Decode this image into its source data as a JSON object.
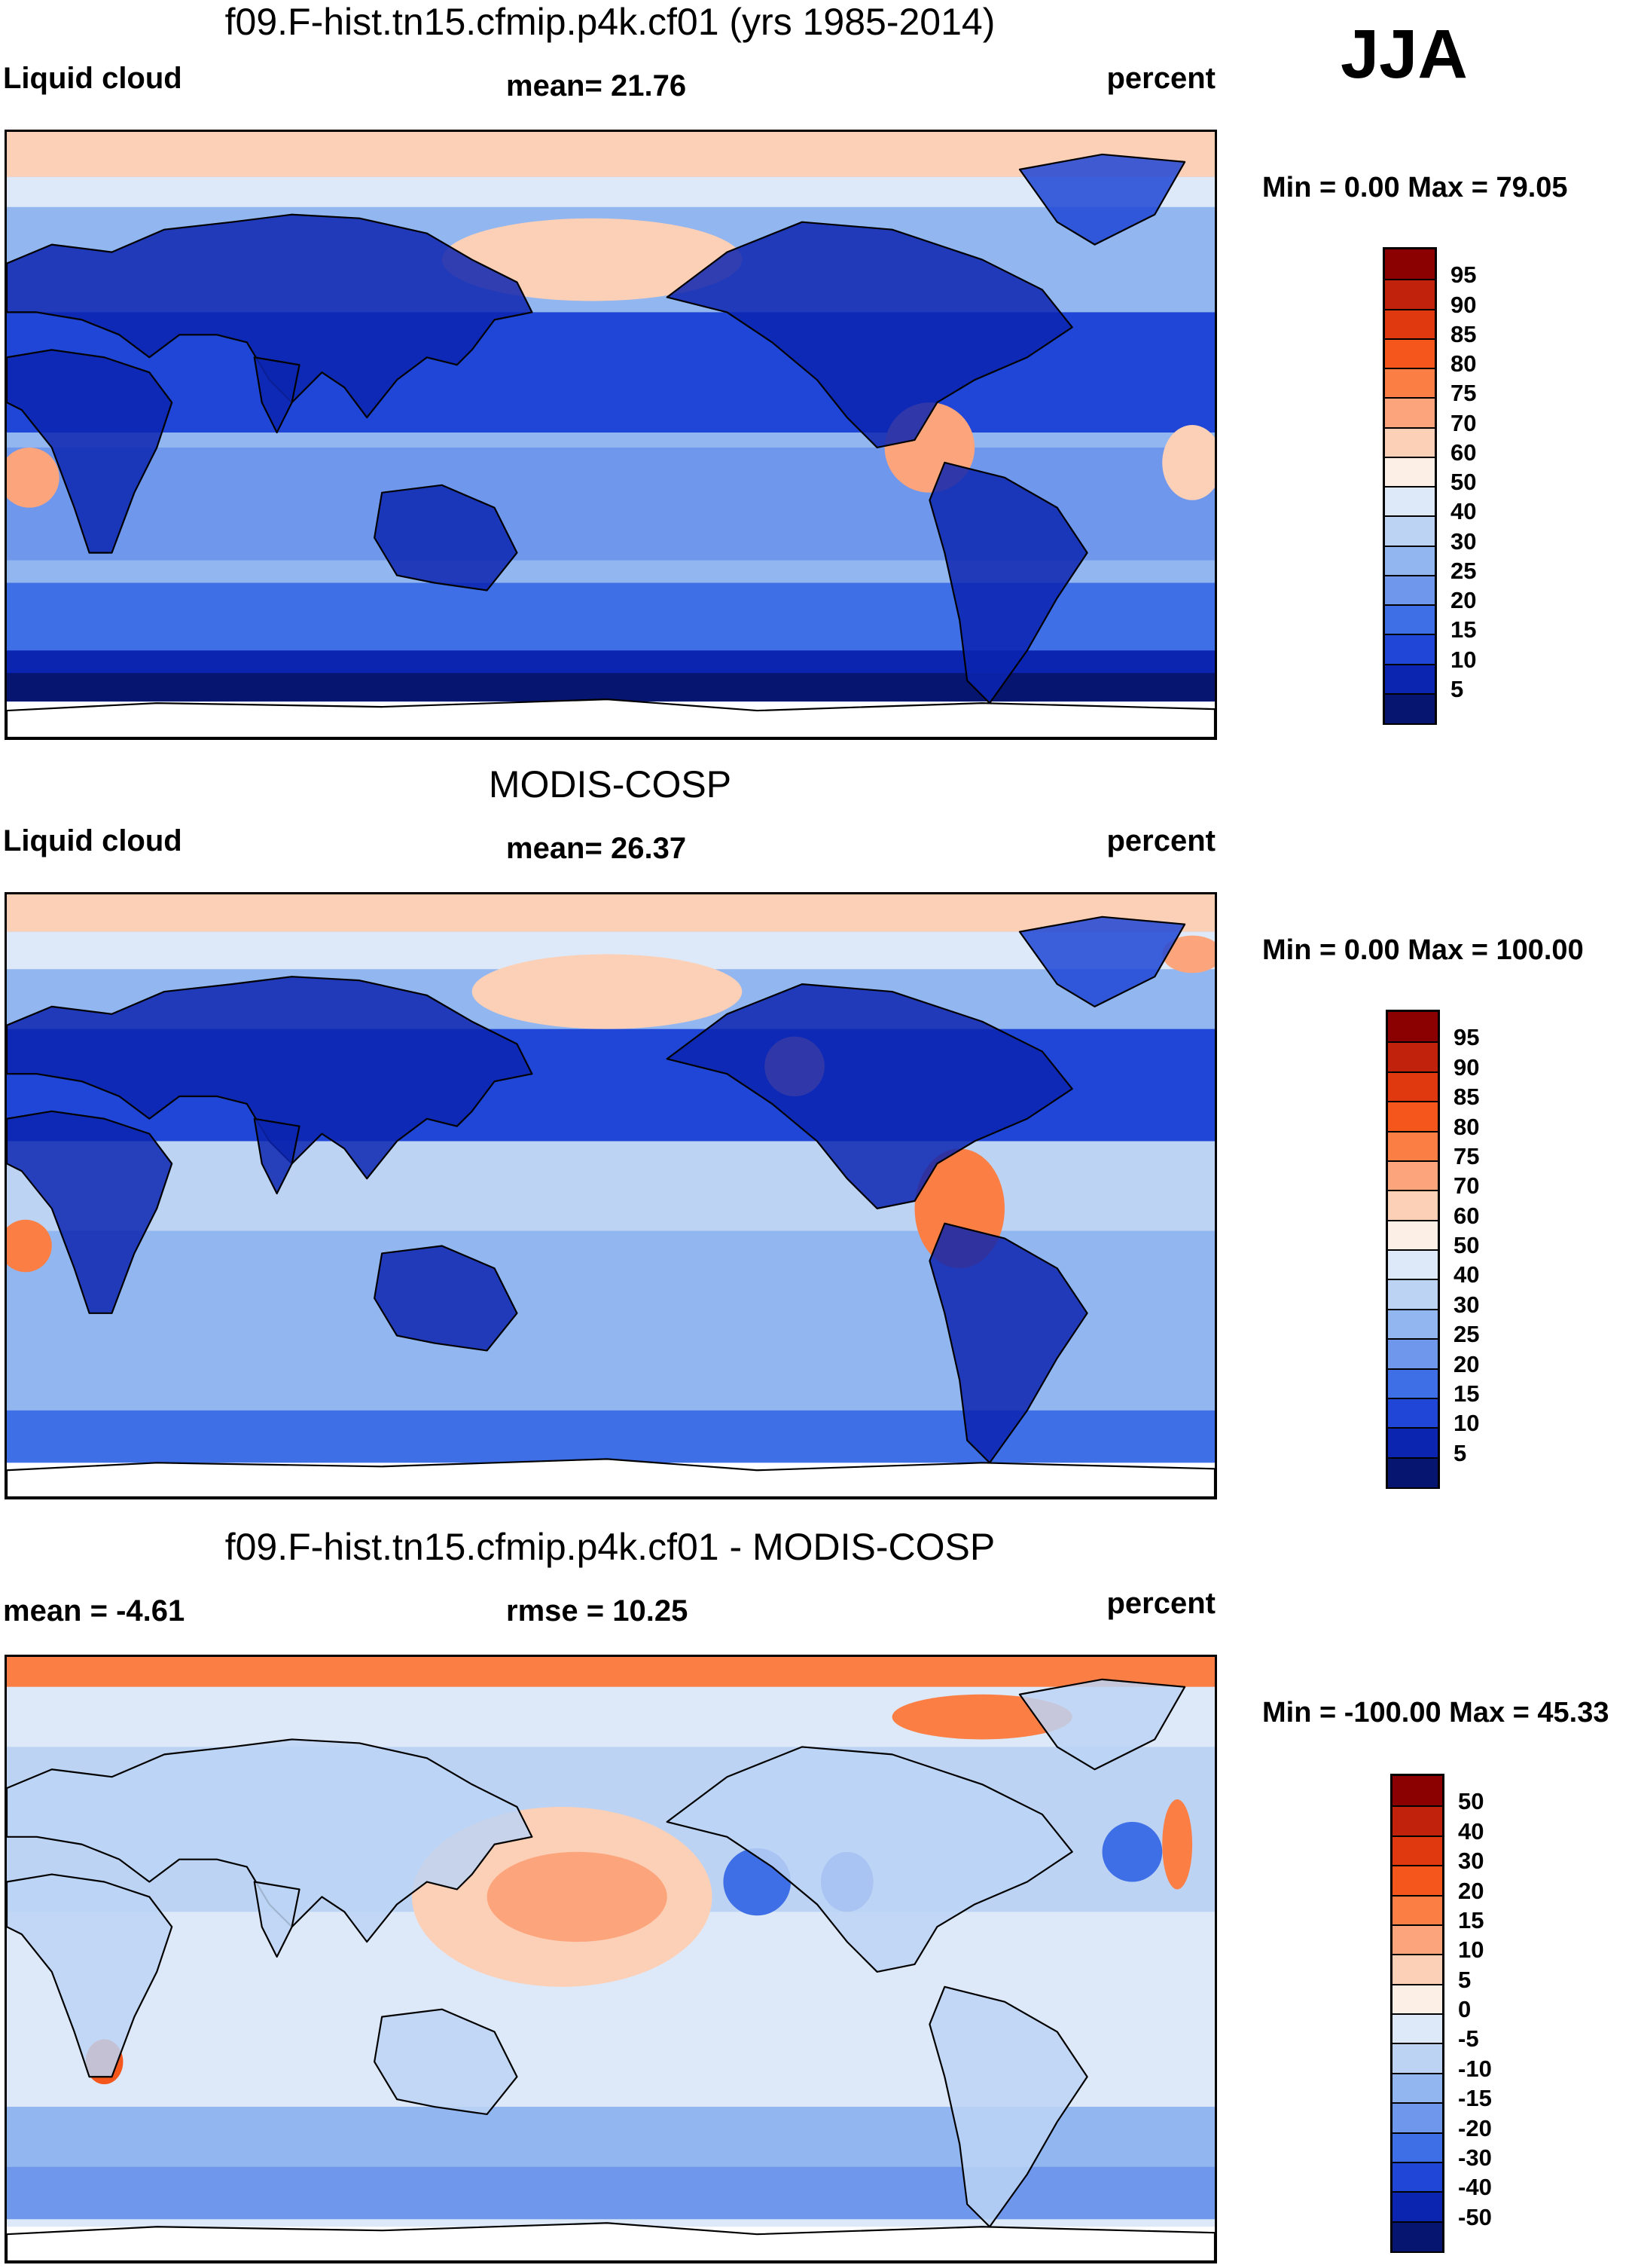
{
  "season": "JJA",
  "panels": [
    {
      "title": "f09.F-hist.tn15.cfmip.p4k.cf01 (yrs 1985-2014)",
      "left_label": "Liquid cloud",
      "center_label": "mean=  21.76",
      "right_label": "percent",
      "minmax": "Min =   0.00 Max =  79.05",
      "colorbar": {
        "levels": [
          "95",
          "90",
          "85",
          "80",
          "75",
          "70",
          "60",
          "50",
          "40",
          "30",
          "25",
          "20",
          "15",
          "10",
          "5"
        ],
        "colors": [
          "#8b0000",
          "#c0220b",
          "#e0390f",
          "#f4561b",
          "#fb7f45",
          "#fca57d",
          "#fcd0b7",
          "#fcefe5",
          "#dde9f8",
          "#bcd3f4",
          "#92b6ef",
          "#6f98ec",
          "#3f6fe6",
          "#1f46d6",
          "#0c25b0",
          "#061670"
        ]
      },
      "field": "model"
    },
    {
      "title": "MODIS-COSP",
      "left_label": "Liquid cloud",
      "center_label": "mean=  26.37",
      "right_label": "percent",
      "minmax": "Min =   0.00 Max = 100.00",
      "colorbar": {
        "levels": [
          "95",
          "90",
          "85",
          "80",
          "75",
          "70",
          "60",
          "50",
          "40",
          "30",
          "25",
          "20",
          "15",
          "10",
          "5"
        ],
        "colors": [
          "#8b0000",
          "#c0220b",
          "#e0390f",
          "#f4561b",
          "#fb7f45",
          "#fca57d",
          "#fcd0b7",
          "#fcefe5",
          "#dde9f8",
          "#bcd3f4",
          "#92b6ef",
          "#6f98ec",
          "#3f6fe6",
          "#1f46d6",
          "#0c25b0",
          "#061670"
        ]
      },
      "field": "obs"
    },
    {
      "title": "f09.F-hist.tn15.cfmip.p4k.cf01 - MODIS-COSP",
      "left_label": "mean =  -4.61",
      "center_label": "rmse =  10.25",
      "right_label": "percent",
      "minmax": "Min = -100.00 Max =  45.33",
      "colorbar": {
        "levels": [
          "50",
          "40",
          "30",
          "20",
          "15",
          "10",
          "5",
          "0",
          "-5",
          "-10",
          "-15",
          "-20",
          "-30",
          "-40",
          "-50"
        ],
        "colors": [
          "#8b0000",
          "#c0220b",
          "#e0390f",
          "#f4561b",
          "#fb7f45",
          "#fca57d",
          "#fcd0b7",
          "#fcefe5",
          "#dde9f8",
          "#bcd3f4",
          "#92b6ef",
          "#6f98ec",
          "#3f6fe6",
          "#1f46d6",
          "#0c25b0",
          "#061670"
        ]
      },
      "field": "diff"
    }
  ]
}
